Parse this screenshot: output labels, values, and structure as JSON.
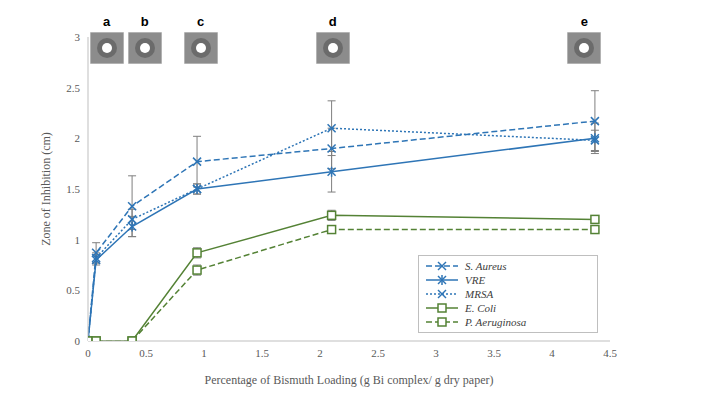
{
  "chart_data": {
    "type": "line",
    "x_label": "Percentage of Bismuth Loading (g Bi complex/ g dry paper)",
    "y_label": "Zone of Inhibition (cm)",
    "x": [
      0,
      0.07,
      0.38,
      0.94,
      2.1,
      4.37
    ],
    "xlim": [
      0,
      4.5
    ],
    "xticks": [
      0,
      0.5,
      1,
      1.5,
      2,
      2.5,
      3,
      3.5,
      4,
      4.5
    ],
    "ylim": [
      0,
      3
    ],
    "yticks": [
      0,
      0.5,
      1,
      1.5,
      2,
      2.5,
      3
    ],
    "grid": false,
    "legend": "bottom-right",
    "series": [
      {
        "name": "S. Aureus",
        "color": "#2e75b6",
        "marker": "x",
        "line_style": "dashed",
        "values": [
          0,
          0.87,
          1.33,
          1.77,
          1.9,
          2.17
        ],
        "errors": [
          0,
          0.1,
          0.3,
          0.25,
          0.2,
          0.3
        ]
      },
      {
        "name": "VRE",
        "color": "#2e75b6",
        "marker": "star",
        "line_style": "solid",
        "values": [
          0,
          0.8,
          1.13,
          1.5,
          1.67,
          2.0
        ],
        "errors": [
          0,
          0.05,
          0.1,
          0.05,
          0.2,
          0.15
        ]
      },
      {
        "name": "MRSA",
        "color": "#2e75b6",
        "marker": "x",
        "line_style": "dotted",
        "values": [
          0,
          0.82,
          1.2,
          1.5,
          2.1,
          1.98
        ],
        "errors": [
          0,
          0.05,
          0.1,
          0.05,
          0.27,
          0.1
        ]
      },
      {
        "name": "E. Coli",
        "color": "#548235",
        "marker": "square",
        "line_style": "solid",
        "values": [
          0,
          0,
          0,
          0.87,
          1.24,
          1.2
        ],
        "errors": [
          0,
          0,
          0,
          0.05,
          0.05,
          0
        ]
      },
      {
        "name": "P. Aeruginosa",
        "color": "#548235",
        "marker": "square",
        "line_style": "dashed",
        "values": [
          0,
          0,
          0,
          0.7,
          1.1,
          1.1
        ],
        "errors": [
          0,
          0,
          0,
          0.05,
          0,
          0
        ]
      }
    ],
    "annotations": [
      {
        "text": "a",
        "x": 0.16
      },
      {
        "text": "b",
        "x": 0.49
      },
      {
        "text": "c",
        "x": 0.97
      },
      {
        "text": "d",
        "x": 2.11
      },
      {
        "text": "e",
        "x": 4.28
      }
    ]
  }
}
